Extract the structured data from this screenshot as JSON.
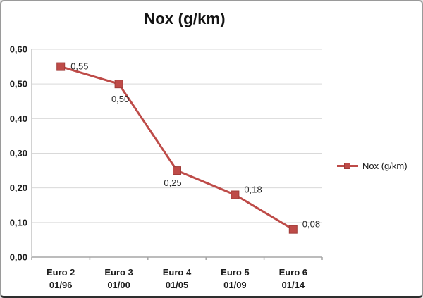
{
  "chart_data": {
    "type": "line",
    "title": "Nox (g/km)",
    "categories": [
      {
        "label": "Euro 2",
        "date": "01/96"
      },
      {
        "label": "Euro 3",
        "date": "01/00"
      },
      {
        "label": "Euro 4",
        "date": "01/05"
      },
      {
        "label": "Euro 5",
        "date": "01/09"
      },
      {
        "label": "Euro 6",
        "date": "01/14"
      }
    ],
    "series": [
      {
        "name": "Nox (g/km)",
        "values": [
          0.55,
          0.5,
          0.25,
          0.18,
          0.08
        ],
        "value_labels": [
          "0,55",
          "0,50",
          "0,25",
          "0,18",
          "0,08"
        ],
        "color": "#be4b48",
        "marker": "square"
      }
    ],
    "ylim": [
      0,
      0.6
    ],
    "ytick_step": 0.1,
    "ytick_labels": [
      "0,00",
      "0,10",
      "0,20",
      "0,30",
      "0,40",
      "0,50",
      "0,60"
    ],
    "xlabel": "",
    "ylabel": "",
    "grid": true,
    "legend_position": "right",
    "decimal_separator": ","
  },
  "colors": {
    "series": "#be4b48",
    "series_edge": "#a03c39",
    "gridline": "#d9d9d9",
    "axis": "#a6a6a6",
    "text": "#1c1c1c",
    "background": "#ffffff",
    "frame_border": "#9a9a9a"
  }
}
